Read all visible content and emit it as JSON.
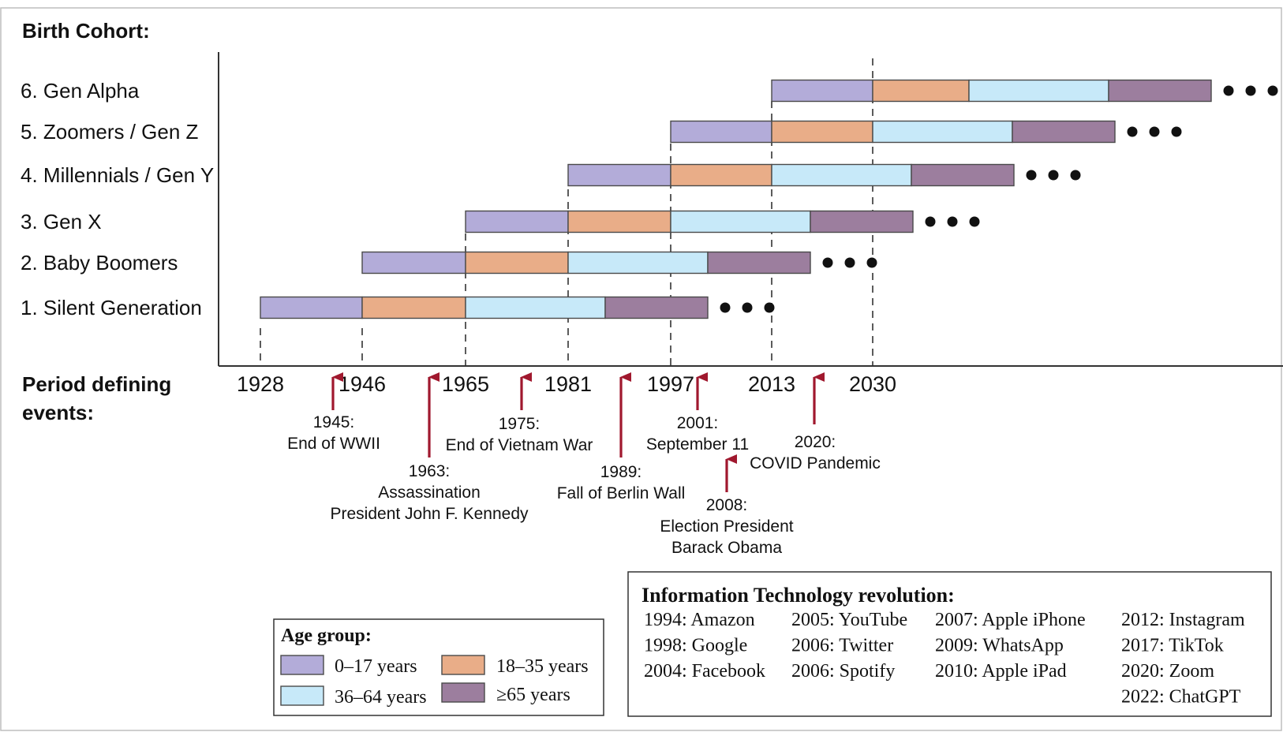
{
  "title": "Birth Cohort:",
  "events_heading_line1": "Period  defining",
  "events_heading_line2": "events:",
  "colors": {
    "age_0_17": "#b3acd9",
    "age_18_35": "#e9ad88",
    "age_36_64": "#c7e9f9",
    "age_65_plus": "#9c7e9e",
    "arrow": "#a0182e",
    "outline": "#4a4a4a"
  },
  "axis_years": [
    "1928",
    "1946",
    "1965",
    "1981",
    "1997",
    "2013",
    "2030"
  ],
  "cohorts": [
    {
      "label": "1. Silent Generation",
      "start": 1928
    },
    {
      "label": "2. Baby Boomers",
      "start": 1946
    },
    {
      "label": "3. Gen X",
      "start": 1965
    },
    {
      "label": "4. Millennials / Gen Y",
      "start": 1981
    },
    {
      "label": "5. Zoomers / Gen Z",
      "start": 1997
    },
    {
      "label": "6. Gen Alpha",
      "start": 2013
    }
  ],
  "events": [
    {
      "year": "1945:",
      "desc": [
        "End of WWII"
      ]
    },
    {
      "year": "1963:",
      "desc": [
        "Assassination",
        "President John F. Kennedy"
      ]
    },
    {
      "year": "1975:",
      "desc": [
        "End of  Vietnam War"
      ]
    },
    {
      "year": "1989:",
      "desc": [
        "Fall of Berlin Wall"
      ]
    },
    {
      "year": "2001:",
      "desc": [
        "September 11"
      ]
    },
    {
      "year": "2008:",
      "desc": [
        "Election President",
        "Barack Obama"
      ]
    },
    {
      "year": "2020:",
      "desc": [
        "COVID Pandemic"
      ]
    }
  ],
  "legend": {
    "title": "Age group:",
    "items": [
      "0–17 years",
      "18–35 years",
      "36–64 years",
      "≥65 years"
    ]
  },
  "it_revolution": {
    "title": "Information Technology revolution:",
    "columns": [
      [
        "1994: Amazon",
        "1998: Google",
        "2004: Facebook"
      ],
      [
        "2005: YouTube",
        "2006: Twitter",
        "2006: Spotify"
      ],
      [
        "2007: Apple iPhone",
        "2009: WhatsApp",
        "2010: Apple iPad"
      ],
      [
        "2012: Instagram",
        "2017: TikTok",
        "2020: Zoom",
        "2022: ChatGPT"
      ]
    ]
  }
}
